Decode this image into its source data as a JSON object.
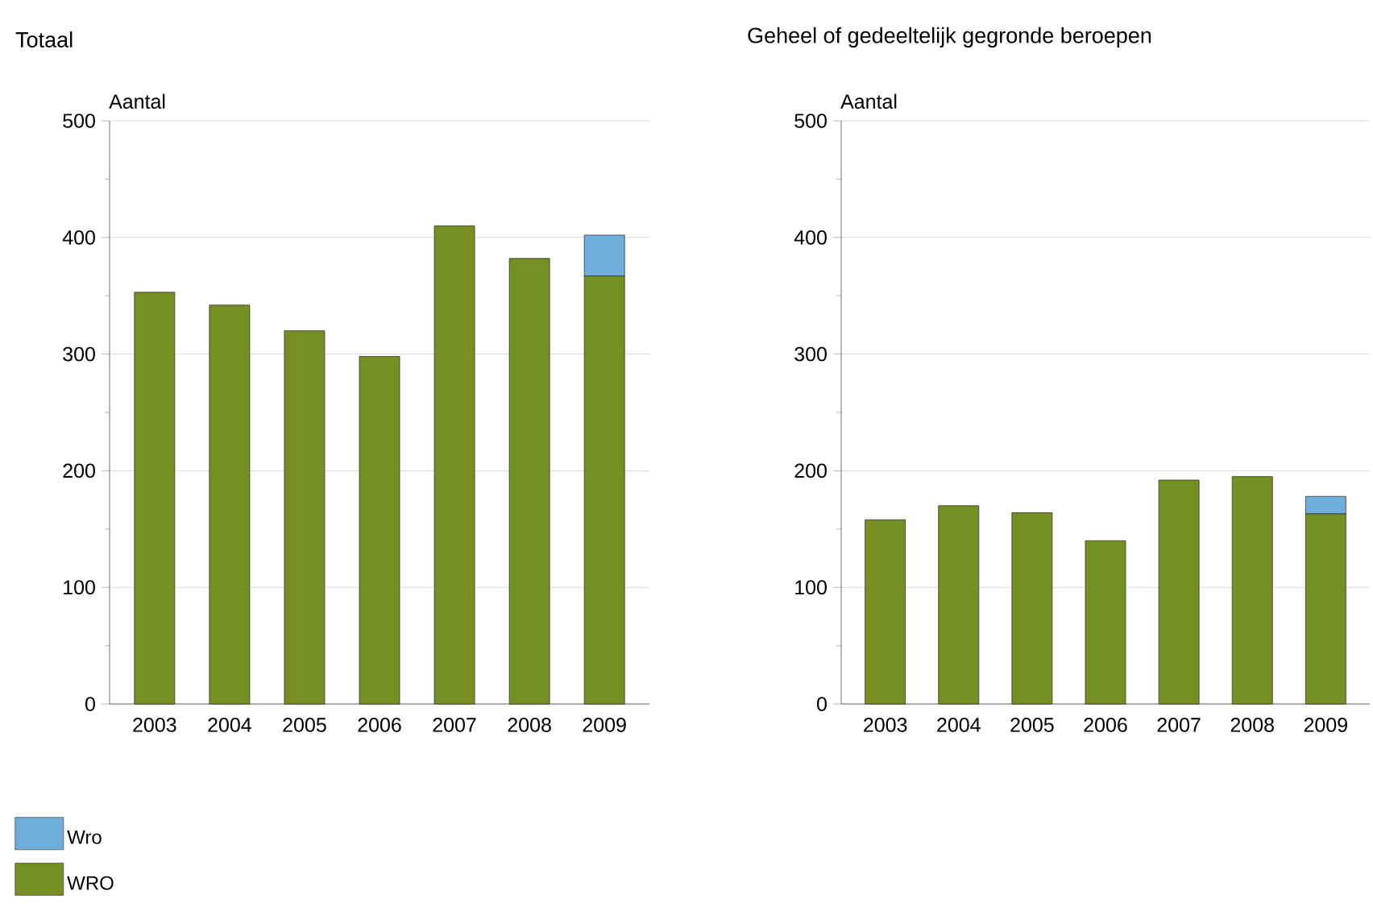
{
  "chart_data": [
    {
      "type": "bar",
      "stacked": true,
      "title": "Totaal",
      "ylabel": "Aantal",
      "categories": [
        "2003",
        "2004",
        "2005",
        "2006",
        "2007",
        "2008",
        "2009"
      ],
      "series": [
        {
          "name": "WRO",
          "color": "#758f22",
          "values": [
            353,
            342,
            320,
            298,
            410,
            382,
            367
          ]
        },
        {
          "name": "Wro",
          "color": "#6faedb",
          "values": [
            0,
            0,
            0,
            0,
            0,
            0,
            35
          ]
        }
      ],
      "ylim": [
        0,
        500
      ],
      "yticks": [
        0,
        100,
        200,
        300,
        400,
        500
      ],
      "grid": "y",
      "legend": "bottom"
    },
    {
      "type": "bar",
      "stacked": true,
      "title": "Geheel of gedeeltelijk gegronde beroepen",
      "ylabel": "Aantal",
      "categories": [
        "2003",
        "2004",
        "2005",
        "2006",
        "2007",
        "2008",
        "2009"
      ],
      "series": [
        {
          "color": "#758f22",
          "values": [
            158,
            170,
            164,
            140,
            192,
            195,
            163
          ]
        },
        {
          "color": "#6faedb",
          "values": [
            0,
            0,
            0,
            0,
            0,
            0,
            15
          ]
        }
      ],
      "ylim": [
        0,
        500
      ],
      "yticks": [
        0,
        100,
        200,
        300,
        400,
        500
      ],
      "grid": "y"
    }
  ]
}
